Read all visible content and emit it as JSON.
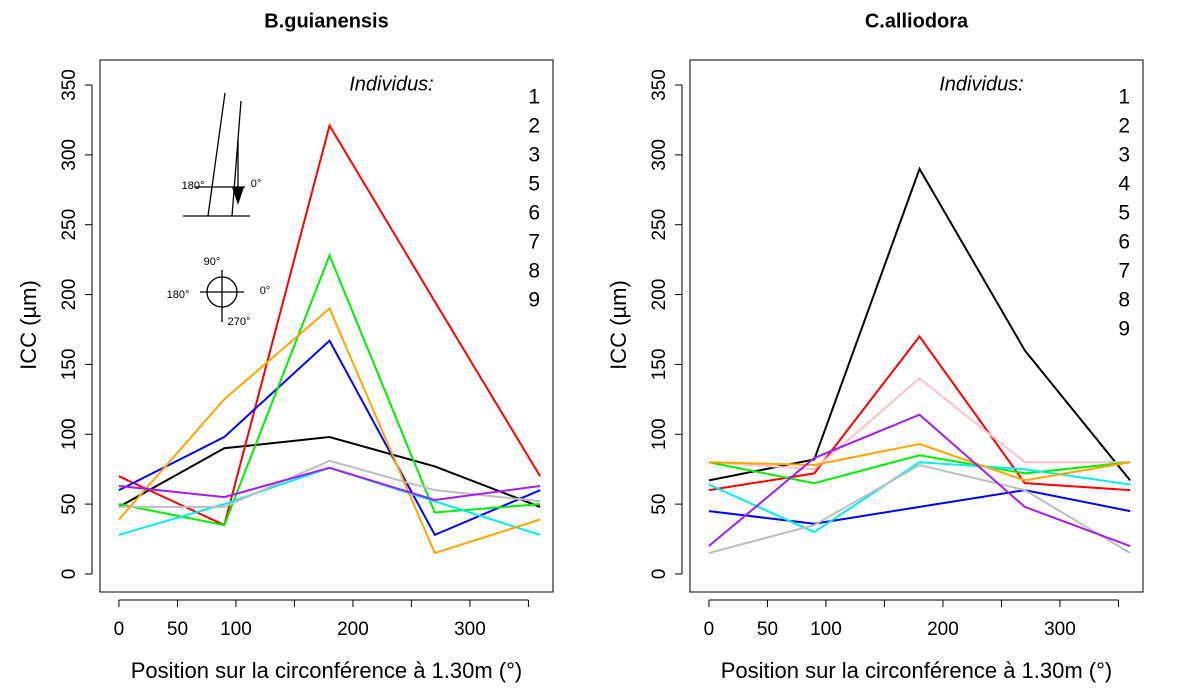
{
  "chart_data": [
    {
      "type": "line",
      "title": "B.guianensis",
      "xlabel": "Position sur la circonférence à 1.30m (°)",
      "ylabel": "ICC (µm)",
      "legend_title": "Individus:",
      "legend": "topright",
      "inset_labels": [
        "180°",
        "0°",
        "90°",
        "180°",
        "0°",
        "270°"
      ],
      "x": [
        0,
        90,
        180,
        270,
        360
      ],
      "xlim": [
        -16.2,
        371
      ],
      "xticks": [
        0,
        50,
        100,
        {
          "value": 150,
          "label": null
        },
        200,
        {
          "value": 250,
          "label": null
        },
        300,
        {
          "value": 350,
          "label": null
        }
      ],
      "ylim": [
        -12.9,
        367.9
      ],
      "yticks": [
        0,
        50,
        100,
        150,
        200,
        250,
        300,
        350
      ],
      "series": [
        {
          "name": "1",
          "color": "#000000",
          "values": [
            48,
            90,
            98,
            77,
            48
          ]
        },
        {
          "name": "2",
          "color": "#ff0000",
          "values": [
            70,
            35,
            321,
            195,
            70
          ]
        },
        {
          "name": "3",
          "color": "#0000ff",
          "values": [
            60,
            98,
            167,
            28,
            60
          ]
        },
        {
          "name": "5",
          "color": "#00ee00",
          "values": [
            50,
            35,
            228,
            44,
            50
          ]
        },
        {
          "name": "6",
          "color": "#00eeee",
          "values": [
            28,
            50,
            76,
            52,
            28
          ]
        },
        {
          "name": "7",
          "color": "#bebebe",
          "values": [
            48,
            48,
            81,
            60,
            52
          ]
        },
        {
          "name": "8",
          "color": "#ffa500",
          "values": [
            39,
            125,
            190,
            15,
            39
          ]
        },
        {
          "name": "9",
          "color": "#a020f0",
          "values": [
            63,
            55,
            76,
            53,
            63
          ]
        }
      ]
    },
    {
      "type": "line",
      "title": "C.alliodora",
      "xlabel": "Position sur la circonférence à 1.30m (°)",
      "ylabel": "ICC (µm)",
      "legend_title": "Individus:",
      "legend": "topright",
      "x": [
        0,
        90,
        180,
        270,
        360
      ],
      "xlim": [
        -16.2,
        371
      ],
      "xticks": [
        0,
        50,
        100,
        {
          "value": 150,
          "label": null
        },
        200,
        {
          "value": 250,
          "label": null
        },
        300,
        {
          "value": 350,
          "label": null
        }
      ],
      "ylim": [
        -12.9,
        367.9
      ],
      "yticks": [
        0,
        50,
        100,
        150,
        200,
        250,
        300,
        350
      ],
      "series": [
        {
          "name": "1",
          "color": "#000000",
          "values": [
            67,
            82,
            290,
            160,
            67
          ]
        },
        {
          "name": "2",
          "color": "#ff0000",
          "values": [
            60,
            72,
            170,
            65,
            60
          ]
        },
        {
          "name": "3",
          "color": "#0000ff",
          "values": [
            45,
            36,
            48,
            60,
            45
          ]
        },
        {
          "name": "4",
          "color": "#ffc0cb",
          "values": [
            80,
            75,
            140,
            80,
            80
          ]
        },
        {
          "name": "5",
          "color": "#00ee00",
          "values": [
            80,
            65,
            85,
            72,
            80
          ]
        },
        {
          "name": "6",
          "color": "#00eeee",
          "values": [
            64,
            30,
            80,
            75,
            64
          ]
        },
        {
          "name": "7",
          "color": "#bebebe",
          "values": [
            15,
            35,
            78,
            60,
            15
          ]
        },
        {
          "name": "8",
          "color": "#ffa500",
          "values": [
            80,
            78,
            93,
            67,
            80
          ]
        },
        {
          "name": "9",
          "color": "#a020f0",
          "values": [
            20,
            83,
            114,
            48,
            20
          ]
        }
      ]
    }
  ]
}
